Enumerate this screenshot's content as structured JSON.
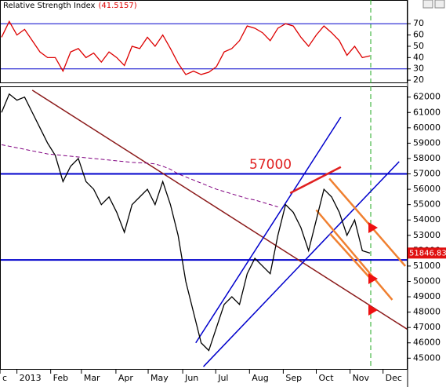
{
  "chart_data": [
    {
      "type": "line",
      "title": "Relative Strength Index",
      "last_label": "(41.5157)",
      "xlim": [
        0,
        53
      ],
      "ylim": [
        18,
        91
      ],
      "yticks": [
        20,
        30,
        40,
        50,
        60,
        70
      ],
      "hlines": [
        70,
        30
      ],
      "hline_color": "#0000cc",
      "series": [
        {
          "name": "RSI",
          "color": "#dd0000",
          "values": [
            58,
            72,
            60,
            65,
            55,
            45,
            40,
            40,
            28,
            45,
            48,
            40,
            44,
            36,
            45,
            40,
            33,
            50,
            48,
            58,
            50,
            60,
            48,
            35,
            25,
            28,
            25,
            27,
            32,
            45,
            48,
            55,
            68,
            66,
            62,
            55,
            66,
            70,
            68,
            58,
            50,
            60,
            68,
            62,
            55,
            42,
            50,
            40,
            41.5157
          ]
        }
      ]
    },
    {
      "type": "line",
      "xlim": [
        0,
        53
      ],
      "ylim": [
        44300,
        62700
      ],
      "yticks": [
        45000,
        46000,
        47000,
        48000,
        49000,
        50000,
        51000,
        52000,
        53000,
        54000,
        55000,
        56000,
        57000,
        58000,
        59000,
        60000,
        61000,
        62000
      ],
      "xticks": [
        {
          "value": -0.2,
          "label": "c"
        },
        {
          "value": 2,
          "label": "2013"
        },
        {
          "value": 6.4,
          "label": "Feb"
        },
        {
          "value": 10.4,
          "label": "Mar"
        },
        {
          "value": 14.9,
          "label": "Apr"
        },
        {
          "value": 19.1,
          "label": "May"
        },
        {
          "value": 23.6,
          "label": "Jun"
        },
        {
          "value": 27.9,
          "label": "Jul"
        },
        {
          "value": 32.3,
          "label": "Aug"
        },
        {
          "value": 36.7,
          "label": "Sep"
        },
        {
          "value": 41,
          "label": "Oct"
        },
        {
          "value": 45.4,
          "label": "Nov"
        },
        {
          "value": 49.7,
          "label": "Dec"
        }
      ],
      "hlines": [
        57000,
        51400
      ],
      "hline_color": "#0000cc",
      "annotation": "57000",
      "series": [
        {
          "name": "Price",
          "color": "#000000",
          "values": [
            61000,
            62200,
            61800,
            62000,
            61000,
            60000,
            59000,
            58200,
            56500,
            57500,
            58000,
            56500,
            56000,
            55000,
            55500,
            54500,
            53200,
            55000,
            55500,
            56000,
            55000,
            56500,
            55000,
            53000,
            50000,
            48000,
            46000,
            45500,
            47000,
            48500,
            49000,
            48500,
            50500,
            51500,
            51000,
            50500,
            53000,
            55000,
            54500,
            53500,
            52000,
            54000,
            56000,
            55500,
            54500,
            53000,
            54000,
            52000,
            51846.83
          ]
        },
        {
          "name": "Moving Average",
          "color": "#800080",
          "values": [
            58900,
            58800,
            58700,
            58600,
            58500,
            58400,
            58300,
            58250,
            58200,
            58150,
            58100,
            58050,
            58000,
            57950,
            57900,
            57850,
            57800,
            57750,
            57720,
            57700,
            57650,
            57500,
            57300,
            57000,
            56800,
            56600,
            56400,
            56200,
            56000,
            55850,
            55700,
            55550,
            55400,
            55300,
            55150,
            55000,
            54850,
            null,
            null,
            null,
            null,
            null,
            null,
            null,
            null,
            null,
            null,
            null,
            null
          ]
        }
      ],
      "trendlines": [
        {
          "color": "#8b1a1a",
          "x": [
            4,
            52.9
          ],
          "y": [
            62450,
            46870
          ]
        },
        {
          "color": "#0000cc",
          "x": [
            26.3,
            51.8
          ],
          "y": [
            44450,
            57800
          ]
        },
        {
          "color": "#0000cc",
          "x": [
            25.3,
            44.2
          ],
          "y": [
            46000,
            60700
          ]
        },
        {
          "color": "#e02020",
          "x": [
            37.6,
            44.2
          ],
          "y": [
            55750,
            57450
          ]
        },
        {
          "color": "#f08030",
          "x": [
            42.7,
            52.6
          ],
          "y": [
            56700,
            51000
          ]
        },
        {
          "color": "#f08030",
          "x": [
            41,
            50.9
          ],
          "y": [
            54650,
            48800
          ]
        },
        {
          "color": "#f08030",
          "x": [
            42.8,
            48.4
          ],
          "y": [
            53100,
            50000
          ]
        }
      ]
    }
  ]
}
